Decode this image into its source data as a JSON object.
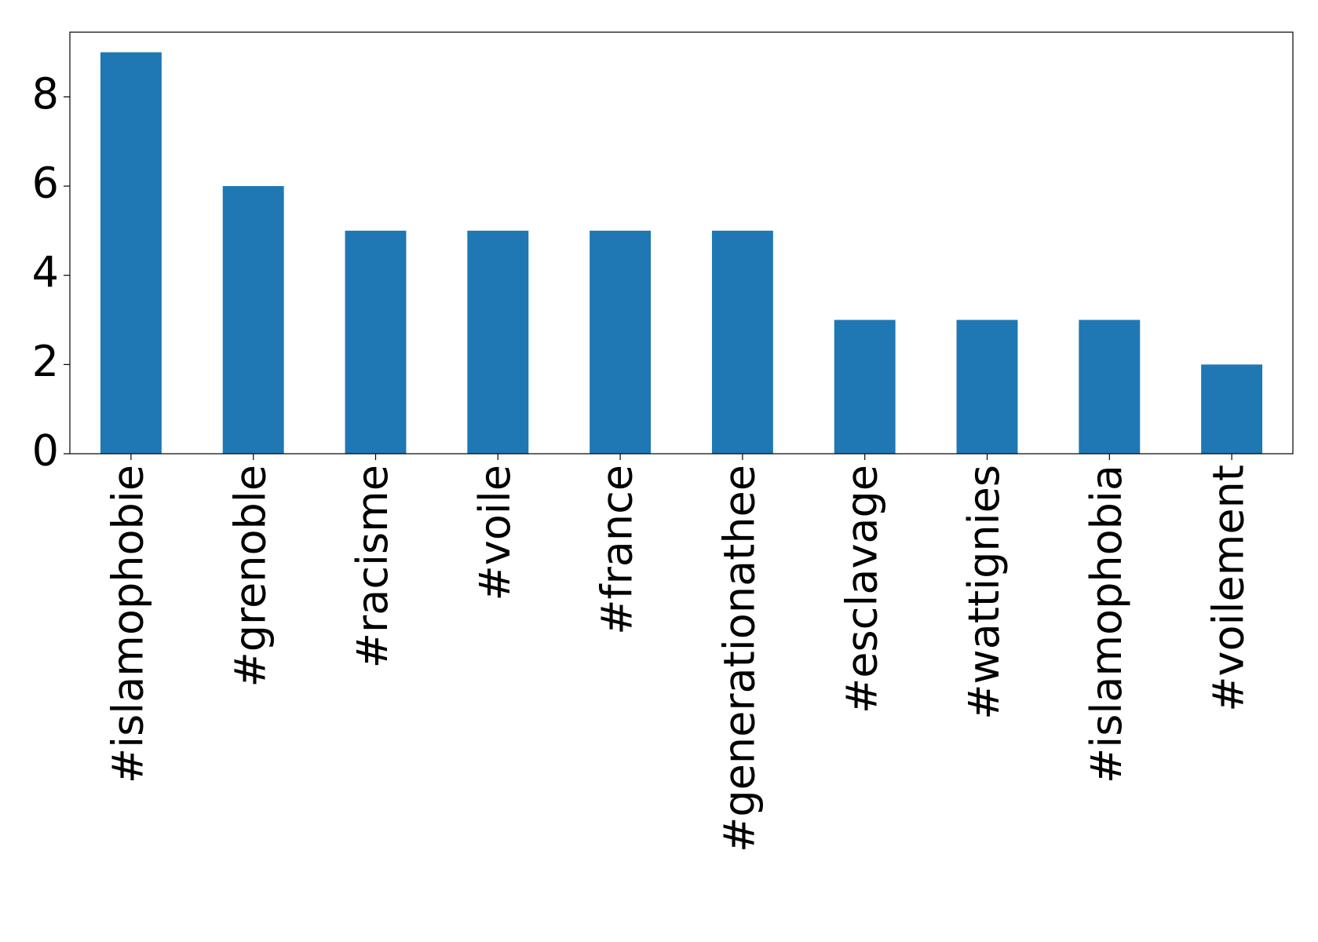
{
  "chart_data": {
    "type": "bar",
    "categories": [
      "#islamophobie",
      "#grenoble",
      "#racisme",
      "#voile",
      "#france",
      "#generationathee",
      "#esclavage",
      "#wattignies",
      "#islamophobia",
      "#voilement"
    ],
    "values": [
      9,
      6,
      5,
      5,
      5,
      5,
      3,
      3,
      3,
      2
    ],
    "color": "#1f77b4",
    "ylim": [
      0,
      9.45
    ],
    "yticks": [
      0,
      2,
      4,
      6,
      8
    ],
    "grid": false
  }
}
